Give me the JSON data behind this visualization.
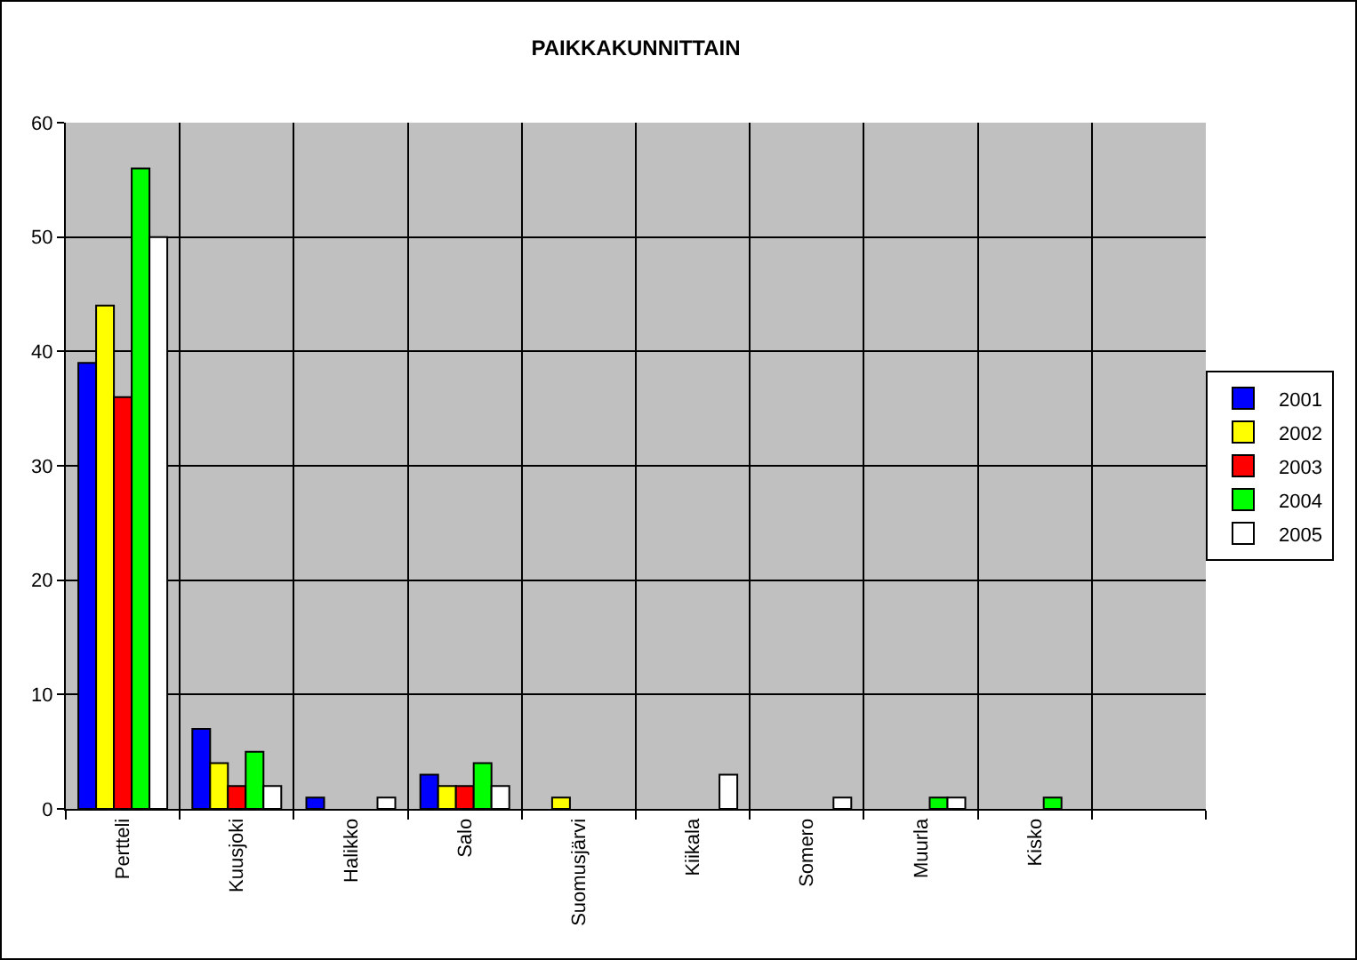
{
  "chart_data": {
    "type": "bar",
    "title": "PAIKKAKUNNITTAIN",
    "categories": [
      "Pertteli",
      "Kuusjoki",
      "Halikko",
      "Salo",
      "Suomusjärvi",
      "Kiikala",
      "Somero",
      "Muurla",
      "Kisko",
      null
    ],
    "series": [
      {
        "name": "2001",
        "color": "#0000ff",
        "values": [
          39,
          7,
          1,
          3,
          null,
          null,
          null,
          null,
          null,
          null
        ]
      },
      {
        "name": "2002",
        "color": "#ffff00",
        "values": [
          44,
          4,
          null,
          2,
          1,
          null,
          null,
          null,
          null,
          null
        ]
      },
      {
        "name": "2003",
        "color": "#ff0000",
        "values": [
          36,
          2,
          null,
          2,
          null,
          null,
          null,
          null,
          null,
          null
        ]
      },
      {
        "name": "2004",
        "color": "#00ff00",
        "values": [
          56,
          5,
          null,
          4,
          null,
          null,
          null,
          1,
          1,
          null
        ]
      },
      {
        "name": "2005",
        "color": "#ffffff",
        "values": [
          50,
          2,
          1,
          2,
          null,
          3,
          1,
          1,
          null,
          null
        ]
      }
    ],
    "ylim": [
      0,
      60
    ],
    "yticks": [
      0,
      10,
      20,
      30,
      40,
      50,
      60
    ],
    "grid": true,
    "legend": "right"
  }
}
